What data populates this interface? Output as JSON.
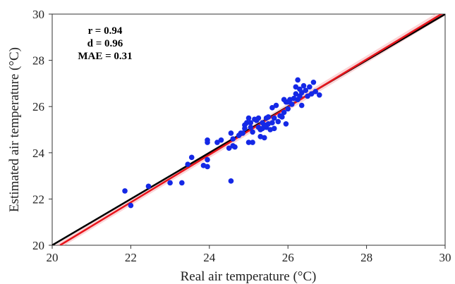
{
  "chart_data": {
    "type": "scatter",
    "title": "",
    "xlabel": "Real air temperature (°C)",
    "ylabel": "Estimated air temperature (°C)",
    "xlim": [
      20,
      30
    ],
    "ylim": [
      20,
      30
    ],
    "x_ticks": [
      "20",
      "22",
      "24",
      "26",
      "28",
      "30"
    ],
    "y_ticks": [
      "20",
      "22",
      "24",
      "26",
      "28",
      "30"
    ],
    "grid": false,
    "stats": [
      "r = 0.94",
      "d = 0.96",
      "MAE = 0.31"
    ],
    "lines": [
      {
        "name": "1:1 line",
        "x": [
          20,
          30
        ],
        "y": [
          20,
          30
        ],
        "color": "#000000"
      },
      {
        "name": "regression line",
        "x": [
          20.2,
          30
        ],
        "y": [
          20,
          30.1
        ],
        "color": "#e8141b",
        "band_color": "#f7b3b6"
      }
    ],
    "points_color": "#1428e6",
    "points": [
      [
        21.85,
        22.35
      ],
      [
        22.0,
        21.72
      ],
      [
        22.45,
        22.55
      ],
      [
        23.0,
        22.7
      ],
      [
        23.3,
        22.7
      ],
      [
        23.45,
        23.5
      ],
      [
        23.55,
        23.8
      ],
      [
        23.85,
        23.45
      ],
      [
        23.95,
        23.4
      ],
      [
        23.95,
        23.7
      ],
      [
        23.95,
        24.45
      ],
      [
        23.95,
        24.55
      ],
      [
        24.2,
        24.45
      ],
      [
        24.3,
        24.55
      ],
      [
        24.5,
        24.2
      ],
      [
        24.55,
        24.85
      ],
      [
        24.6,
        24.3
      ],
      [
        24.6,
        24.6
      ],
      [
        24.65,
        24.25
      ],
      [
        24.55,
        22.78
      ],
      [
        24.75,
        24.75
      ],
      [
        24.8,
        24.85
      ],
      [
        24.85,
        24.85
      ],
      [
        24.9,
        25.2
      ],
      [
        24.9,
        25.05
      ],
      [
        24.95,
        25.3
      ],
      [
        25.0,
        25.5
      ],
      [
        25.0,
        24.45
      ],
      [
        25.05,
        25.3
      ],
      [
        25.05,
        25.1
      ],
      [
        25.1,
        24.9
      ],
      [
        25.1,
        24.45
      ],
      [
        25.15,
        25.45
      ],
      [
        25.2,
        25.4
      ],
      [
        25.25,
        25.5
      ],
      [
        25.25,
        25.1
      ],
      [
        25.3,
        24.7
      ],
      [
        25.3,
        25.0
      ],
      [
        25.35,
        25.3
      ],
      [
        25.35,
        25.05
      ],
      [
        25.4,
        25.2
      ],
      [
        25.4,
        24.65
      ],
      [
        25.45,
        25.5
      ],
      [
        25.45,
        25.1
      ],
      [
        25.5,
        25.25
      ],
      [
        25.5,
        25.55
      ],
      [
        25.55,
        25.0
      ],
      [
        25.6,
        25.3
      ],
      [
        25.6,
        25.95
      ],
      [
        25.65,
        25.5
      ],
      [
        25.65,
        25.05
      ],
      [
        25.7,
        26.05
      ],
      [
        25.75,
        25.35
      ],
      [
        25.8,
        25.6
      ],
      [
        25.85,
        25.55
      ],
      [
        25.9,
        25.75
      ],
      [
        25.9,
        26.3
      ],
      [
        25.95,
        25.25
      ],
      [
        25.95,
        26.2
      ],
      [
        26.0,
        25.9
      ],
      [
        26.0,
        26.2
      ],
      [
        26.05,
        26.3
      ],
      [
        26.1,
        26.1
      ],
      [
        26.15,
        26.35
      ],
      [
        26.2,
        26.55
      ],
      [
        26.2,
        26.85
      ],
      [
        26.25,
        26.3
      ],
      [
        26.25,
        27.15
      ],
      [
        26.3,
        26.75
      ],
      [
        26.3,
        26.45
      ],
      [
        26.35,
        26.05
      ],
      [
        26.35,
        26.6
      ],
      [
        26.4,
        26.9
      ],
      [
        26.45,
        26.7
      ],
      [
        26.5,
        26.45
      ],
      [
        26.55,
        26.85
      ],
      [
        26.6,
        26.55
      ],
      [
        26.65,
        27.05
      ],
      [
        26.7,
        26.65
      ],
      [
        26.8,
        26.5
      ]
    ]
  }
}
